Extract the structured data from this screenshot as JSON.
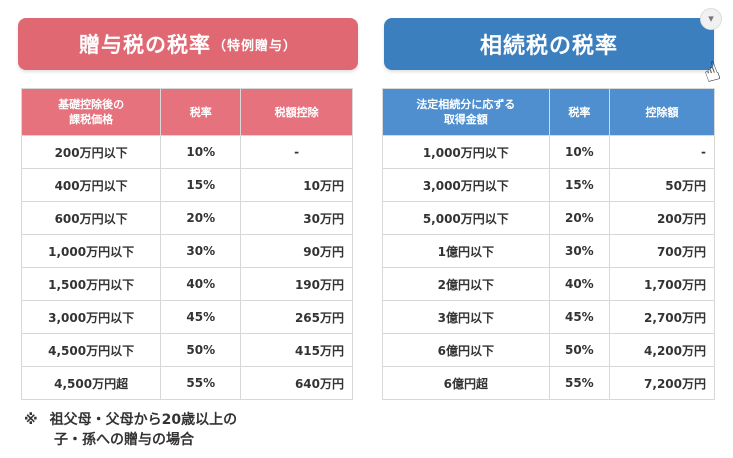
{
  "gift": {
    "title_main": "贈与税の税率",
    "title_sub": "（特例贈与）",
    "headers": [
      "基礎控除後の\n課税価格",
      "税率",
      "税額控除"
    ],
    "rows": [
      [
        "200万円以下",
        "10%",
        "-"
      ],
      [
        "400万円以下",
        "15%",
        "10万円"
      ],
      [
        "600万円以下",
        "20%",
        "30万円"
      ],
      [
        "1,000万円以下",
        "30%",
        "90万円"
      ],
      [
        "1,500万円以下",
        "40%",
        "190万円"
      ],
      [
        "3,000万円以下",
        "45%",
        "265万円"
      ],
      [
        "4,500万円以下",
        "50%",
        "415万円"
      ],
      [
        "4,500万円超",
        "55%",
        "640万円"
      ]
    ]
  },
  "inheritance": {
    "title": "相続税の税率",
    "headers": [
      "法定相続分に応ずる\n取得金額",
      "税率",
      "控除額"
    ],
    "rows": [
      [
        "1,000万円以下",
        "10%",
        "-"
      ],
      [
        "3,000万円以下",
        "15%",
        "50万円"
      ],
      [
        "5,000万円以下",
        "20%",
        "200万円"
      ],
      [
        "1億円以下",
        "30%",
        "700万円"
      ],
      [
        "2億円以下",
        "40%",
        "1,700万円"
      ],
      [
        "3億円以下",
        "45%",
        "2,700万円"
      ],
      [
        "6億円以下",
        "50%",
        "4,200万円"
      ],
      [
        "6億円超",
        "55%",
        "7,200万円"
      ]
    ]
  },
  "note": {
    "mark": "※",
    "line1": "祖父母・父母から20歳以上の",
    "line2": "子・孫への贈与の場合"
  },
  "ui": {
    "chevron": "▾",
    "cursor": "☝"
  },
  "colors": {
    "gift_accent": "#e06873",
    "inheritance_accent": "#3b7fbf"
  }
}
